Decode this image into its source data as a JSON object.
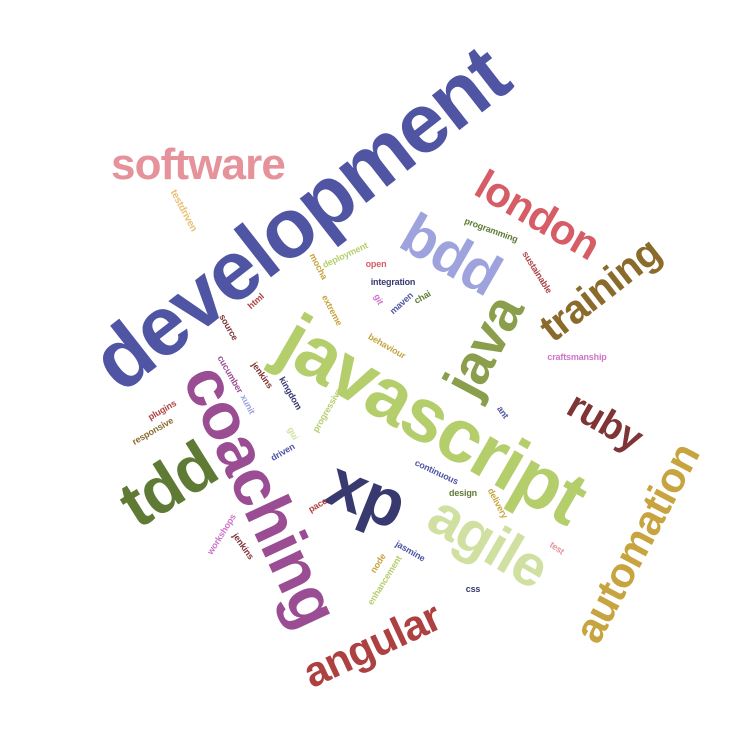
{
  "words": [
    {
      "text": "development",
      "color": "#4f55a3"
    },
    {
      "text": "javascript",
      "color": "#b5ce6c"
    },
    {
      "text": "coaching",
      "color": "#9b4d93"
    },
    {
      "text": "xp",
      "color": "#38396f"
    },
    {
      "text": "agile",
      "color": "#cfe0a0"
    },
    {
      "text": "tdd",
      "color": "#5f7a34"
    },
    {
      "text": "software",
      "color": "#e5929a"
    },
    {
      "text": "london",
      "color": "#d65d66"
    },
    {
      "text": "bdd",
      "color": "#9ea3de"
    },
    {
      "text": "java",
      "color": "#8a9e4c"
    },
    {
      "text": "training",
      "color": "#8b6b2c"
    },
    {
      "text": "ruby",
      "color": "#7f3436"
    },
    {
      "text": "automation",
      "color": "#c7a43f"
    },
    {
      "text": "angular",
      "color": "#ad4142"
    },
    {
      "text": "testdriven",
      "color": "#e8c071"
    },
    {
      "text": "programming",
      "color": "#5f7a34"
    },
    {
      "text": "deployment",
      "color": "#b5ce6c"
    },
    {
      "text": "mocha",
      "color": "#c7a43f"
    },
    {
      "text": "open",
      "color": "#d65d66"
    },
    {
      "text": "sustainable",
      "color": "#ad4142"
    },
    {
      "text": "integration",
      "color": "#38396f"
    },
    {
      "text": "chai",
      "color": "#5f7a34"
    },
    {
      "text": "html",
      "color": "#ad4142"
    },
    {
      "text": "extreme",
      "color": "#c7a43f"
    },
    {
      "text": "git",
      "color": "#cf74c8"
    },
    {
      "text": "maven",
      "color": "#4f55a3"
    },
    {
      "text": "source",
      "color": "#7f3436"
    },
    {
      "text": "behaviour",
      "color": "#c7a43f"
    },
    {
      "text": "craftsmanship",
      "color": "#cf74c8"
    },
    {
      "text": "cucumber",
      "color": "#9b4d93"
    },
    {
      "text": "jenkins",
      "color": "#7f3436"
    },
    {
      "text": "kingdom",
      "color": "#38396f"
    },
    {
      "text": "plugins",
      "color": "#ad4142"
    },
    {
      "text": "xunit",
      "color": "#9ea3de"
    },
    {
      "text": "progressive",
      "color": "#b5ce6c"
    },
    {
      "text": "ant",
      "color": "#4f55a3"
    },
    {
      "text": "responsive",
      "color": "#8b6b2c"
    },
    {
      "text": "gui",
      "color": "#cfe0a0"
    },
    {
      "text": "driven",
      "color": "#4f55a3"
    },
    {
      "text": "continuous",
      "color": "#4f55a3"
    },
    {
      "text": "design",
      "color": "#5f7a34"
    },
    {
      "text": "delivery",
      "color": "#c7a43f"
    },
    {
      "text": "pace",
      "color": "#ad4142"
    },
    {
      "text": "workshops",
      "color": "#cf74c8"
    },
    {
      "text": "jenkins",
      "color": "#7f3436"
    },
    {
      "text": "jasmine",
      "color": "#4f55a3"
    },
    {
      "text": "node",
      "color": "#c7a43f"
    },
    {
      "text": "enhancement",
      "color": "#b5ce6c"
    },
    {
      "text": "test",
      "color": "#e5929a"
    },
    {
      "text": "css",
      "color": "#38396f"
    }
  ]
}
